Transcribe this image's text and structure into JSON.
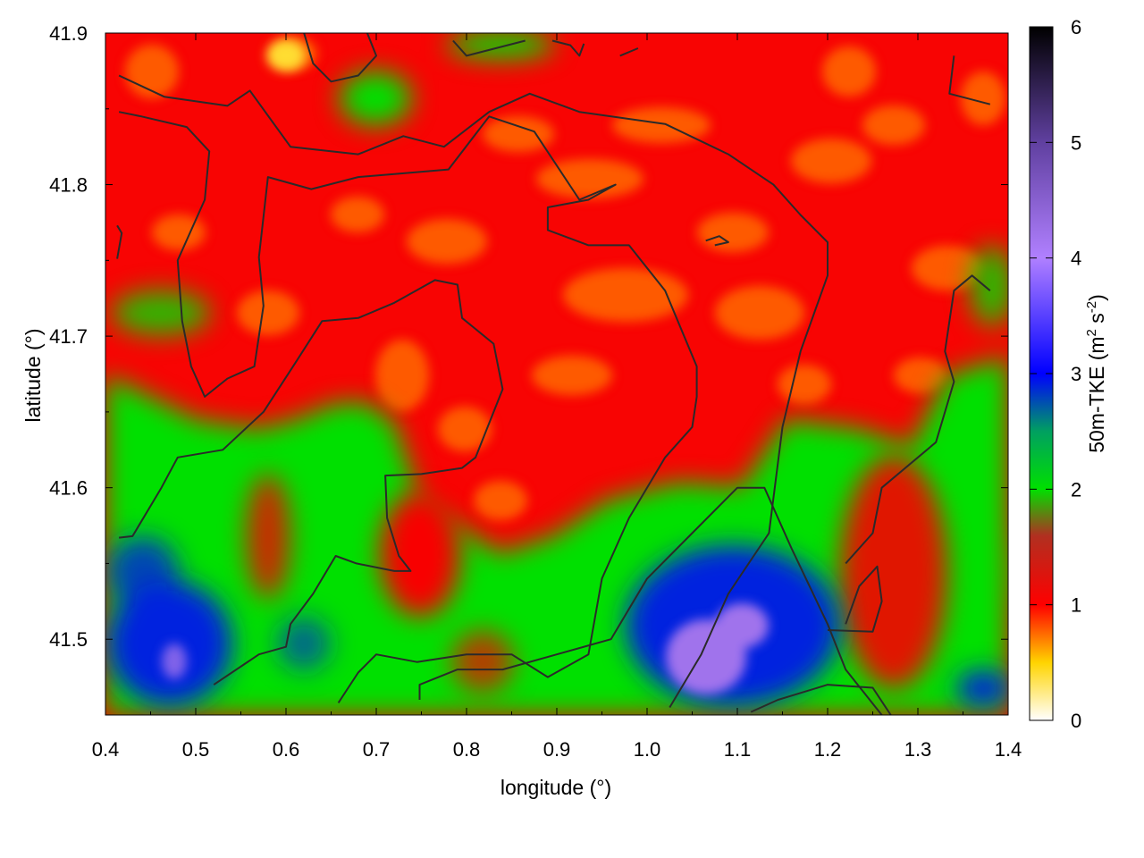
{
  "chart_data": {
    "type": "heatmap",
    "title": "",
    "xlabel": "longitude (°)",
    "ylabel": "latitude (°)",
    "xlim": [
      0.4,
      1.4
    ],
    "ylim": [
      41.45,
      41.9
    ],
    "x_ticks": [
      0.4,
      0.5,
      0.6,
      0.7,
      0.8,
      0.9,
      1.0,
      1.1,
      1.2,
      1.3,
      1.4
    ],
    "x_tick_labels": [
      "0.4",
      "0.5",
      "0.6",
      "0.7",
      "0.8",
      "0.9",
      "1.0",
      "1.1",
      "1.2",
      "1.3",
      "1.4"
    ],
    "y_ticks": [
      41.5,
      41.6,
      41.7,
      41.8,
      41.9
    ],
    "y_tick_labels": [
      "41.5",
      "41.6",
      "41.7",
      "41.8",
      "41.9"
    ],
    "colorbar": {
      "label_main": "50m-TKE (m",
      "label_sup1": "2",
      "label_mid": " s",
      "label_sup2": "-2",
      "label_end": ")",
      "range": [
        0,
        6
      ],
      "ticks": [
        0,
        1,
        2,
        3,
        4,
        5,
        6
      ],
      "tick_labels": [
        "0",
        "1",
        "2",
        "3",
        "4",
        "5",
        "6"
      ],
      "stops": [
        {
          "value": 0.0,
          "color": "#ffffff"
        },
        {
          "value": 0.5,
          "color": "#ffd400"
        },
        {
          "value": 1.0,
          "color": "#ff0000"
        },
        {
          "value": 1.6,
          "color": "#b03020"
        },
        {
          "value": 2.0,
          "color": "#00e000"
        },
        {
          "value": 2.5,
          "color": "#00a060"
        },
        {
          "value": 3.0,
          "color": "#0000ff"
        },
        {
          "value": 4.0,
          "color": "#b080ff"
        },
        {
          "value": 5.0,
          "color": "#6040a0"
        },
        {
          "value": 6.0,
          "color": "#000000"
        }
      ]
    },
    "field_regions": [
      {
        "name": "Background TKE",
        "value": 1.05
      },
      {
        "name": "Orange maxima",
        "value": 0.75
      },
      {
        "name": "Yellow maximum",
        "value": 0.4
      },
      {
        "name": "Green lowland",
        "value": 2.0
      },
      {
        "name": "Blue southwest",
        "value": 2.9
      },
      {
        "name": "Violet southeast",
        "value": 4.2
      }
    ],
    "contours": [
      [
        [
          0.415,
          41.872
        ],
        [
          0.465,
          41.858
        ],
        [
          0.535,
          41.852
        ],
        [
          0.56,
          41.862
        ],
        [
          0.605,
          41.825
        ],
        [
          0.68,
          41.82
        ],
        [
          0.73,
          41.832
        ],
        [
          0.775,
          41.825
        ],
        [
          0.825,
          41.848
        ],
        [
          0.87,
          41.86
        ],
        [
          0.925,
          41.848
        ],
        [
          1.02,
          41.84
        ],
        [
          1.09,
          41.82
        ],
        [
          1.14,
          41.8
        ],
        [
          1.17,
          41.78
        ],
        [
          1.2,
          41.762
        ],
        [
          1.2,
          41.74
        ],
        [
          1.17,
          41.69
        ],
        [
          1.15,
          41.64
        ],
        [
          1.135,
          41.57
        ],
        [
          1.09,
          41.53
        ],
        [
          1.06,
          41.49
        ],
        [
          1.025,
          41.455
        ]
      ],
      [
        [
          0.415,
          41.848
        ],
        [
          0.44,
          41.845
        ],
        [
          0.49,
          41.838
        ],
        [
          0.515,
          41.822
        ],
        [
          0.51,
          41.79
        ],
        [
          0.48,
          41.75
        ],
        [
          0.485,
          41.71
        ],
        [
          0.495,
          41.68
        ],
        [
          0.51,
          41.66
        ],
        [
          0.535,
          41.672
        ],
        [
          0.565,
          41.68
        ],
        [
          0.575,
          41.72
        ],
        [
          0.57,
          41.752
        ],
        [
          0.58,
          41.805
        ],
        [
          0.628,
          41.797
        ],
        [
          0.68,
          41.805
        ],
        [
          0.72,
          41.807
        ],
        [
          0.78,
          41.81
        ],
        [
          0.825,
          41.845
        ],
        [
          0.875,
          41.835
        ],
        [
          0.925,
          41.79
        ],
        [
          0.965,
          41.8
        ],
        [
          0.935,
          41.79
        ],
        [
          0.89,
          41.785
        ],
        [
          0.89,
          41.77
        ],
        [
          0.935,
          41.76
        ],
        [
          0.98,
          41.76
        ],
        [
          1.02,
          41.73
        ],
        [
          1.055,
          41.68
        ],
        [
          1.055,
          41.66
        ],
        [
          1.05,
          41.64
        ],
        [
          1.02,
          41.62
        ],
        [
          0.98,
          41.58
        ],
        [
          0.95,
          41.54
        ],
        [
          0.935,
          41.49
        ],
        [
          0.89,
          41.475
        ],
        [
          0.85,
          41.49
        ],
        [
          0.8,
          41.49
        ],
        [
          0.745,
          41.485
        ],
        [
          0.7,
          41.49
        ],
        [
          0.68,
          41.478
        ],
        [
          0.658,
          41.458
        ]
      ],
      [
        [
          0.415,
          41.567
        ],
        [
          0.43,
          41.568
        ],
        [
          0.462,
          41.6
        ],
        [
          0.48,
          41.62
        ],
        [
          0.53,
          41.625
        ],
        [
          0.575,
          41.65
        ],
        [
          0.61,
          41.682
        ],
        [
          0.64,
          41.71
        ],
        [
          0.68,
          41.712
        ],
        [
          0.72,
          41.722
        ],
        [
          0.765,
          41.737
        ],
        [
          0.79,
          41.734
        ],
        [
          0.795,
          41.712
        ],
        [
          0.83,
          41.695
        ],
        [
          0.84,
          41.665
        ],
        [
          0.81,
          41.62
        ],
        [
          0.795,
          41.613
        ],
        [
          0.75,
          41.609
        ],
        [
          0.71,
          41.608
        ],
        [
          0.712,
          41.58
        ],
        [
          0.725,
          41.555
        ],
        [
          0.738,
          41.545
        ],
        [
          0.72,
          41.545
        ],
        [
          0.678,
          41.55
        ],
        [
          0.655,
          41.555
        ],
        [
          0.63,
          41.53
        ],
        [
          0.605,
          41.51
        ],
        [
          0.6,
          41.495
        ],
        [
          0.57,
          41.49
        ],
        [
          0.52,
          41.47
        ]
      ],
      [
        [
          0.748,
          41.46
        ],
        [
          0.748,
          41.47
        ],
        [
          0.79,
          41.48
        ],
        [
          0.84,
          41.48
        ],
        [
          0.9,
          41.49
        ],
        [
          0.96,
          41.5
        ],
        [
          1.0,
          41.54
        ],
        [
          1.05,
          41.57
        ],
        [
          1.1,
          41.6
        ],
        [
          1.13,
          41.6
        ],
        [
          1.16,
          41.56
        ],
        [
          1.2,
          41.51
        ],
        [
          1.22,
          41.48
        ],
        [
          1.26,
          41.45
        ]
      ],
      [
        [
          1.115,
          41.452
        ],
        [
          1.145,
          41.46
        ],
        [
          1.2,
          41.47
        ],
        [
          1.25,
          41.468
        ],
        [
          1.27,
          41.45
        ]
      ],
      [
        [
          1.2,
          41.506
        ],
        [
          1.25,
          41.505
        ],
        [
          1.26,
          41.525
        ],
        [
          1.255,
          41.548
        ],
        [
          1.235,
          41.535
        ],
        [
          1.22,
          41.51
        ]
      ],
      [
        [
          1.34,
          41.885
        ],
        [
          1.335,
          41.86
        ],
        [
          1.38,
          41.853
        ]
      ],
      [
        [
          1.38,
          41.73
        ],
        [
          1.36,
          41.74
        ],
        [
          1.34,
          41.73
        ],
        [
          1.33,
          41.69
        ],
        [
          1.34,
          41.67
        ],
        [
          1.32,
          41.63
        ],
        [
          1.3,
          41.62
        ],
        [
          1.26,
          41.6
        ],
        [
          1.25,
          41.57
        ],
        [
          1.22,
          41.55
        ]
      ],
      [
        [
          0.413,
          41.773
        ],
        [
          0.418,
          41.768
        ],
        [
          0.413,
          41.751
        ]
      ],
      [
        [
          0.62,
          41.9
        ],
        [
          0.63,
          41.88
        ],
        [
          0.65,
          41.868
        ],
        [
          0.68,
          41.872
        ],
        [
          0.7,
          41.885
        ],
        [
          0.69,
          41.9
        ]
      ],
      [
        [
          0.785,
          41.895
        ],
        [
          0.8,
          41.885
        ],
        [
          0.865,
          41.895
        ]
      ],
      [
        [
          0.895,
          41.895
        ],
        [
          0.915,
          41.892
        ],
        [
          0.925,
          41.885
        ],
        [
          0.93,
          41.893
        ]
      ],
      [
        [
          0.97,
          41.885
        ],
        [
          0.99,
          41.89
        ]
      ],
      [
        [
          1.065,
          41.763
        ],
        [
          1.08,
          41.766
        ],
        [
          1.09,
          41.762
        ],
        [
          1.075,
          41.76
        ]
      ]
    ]
  }
}
